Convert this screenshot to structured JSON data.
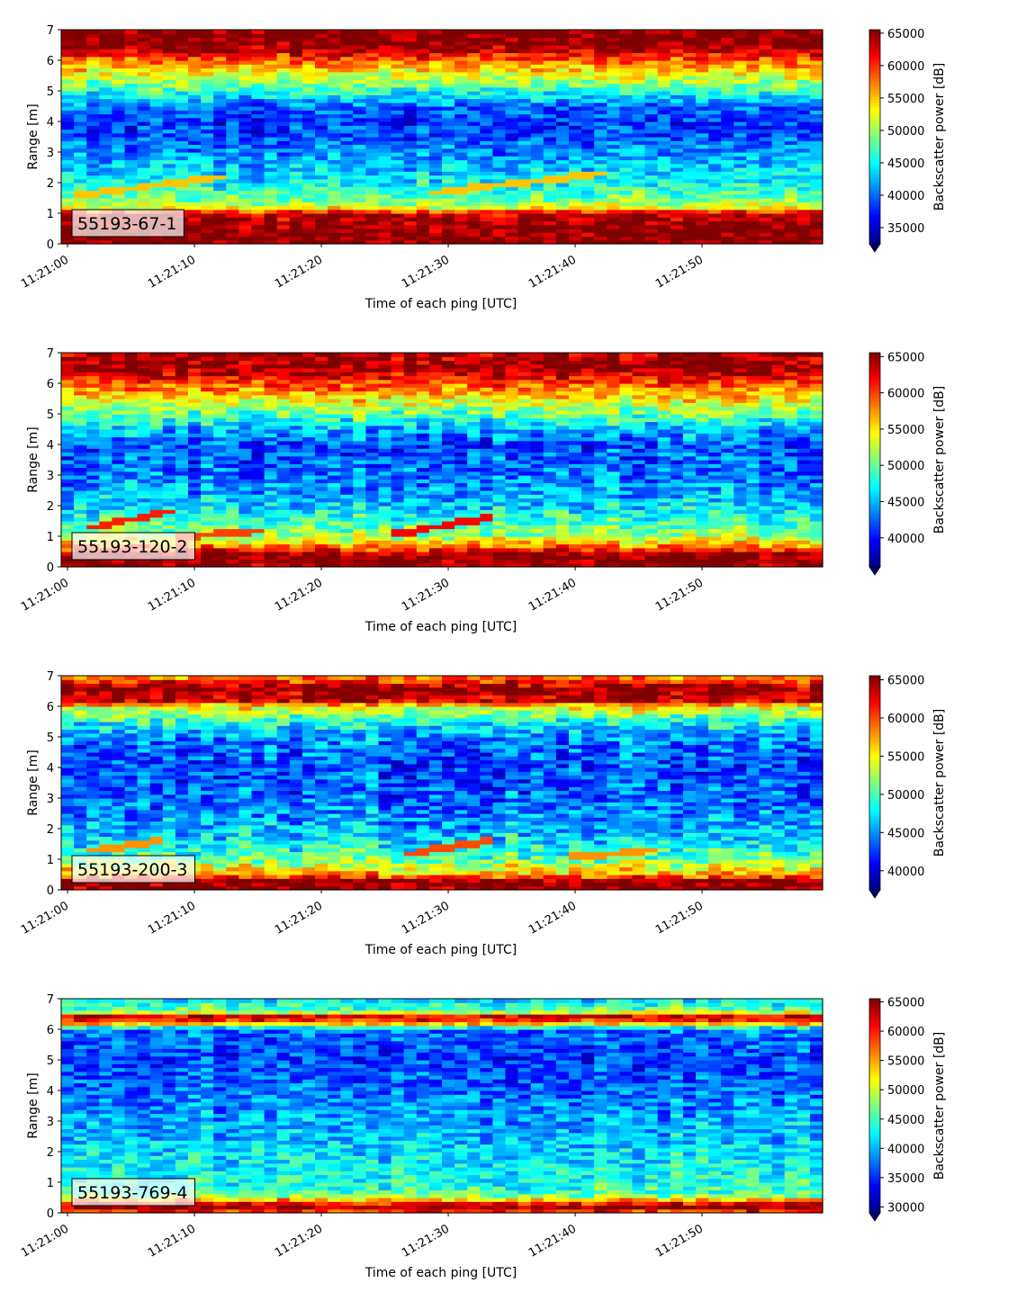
{
  "colormap": "jet",
  "chart_data": [
    {
      "type": "heatmap",
      "panel_label": "55193-67-1",
      "xlabel": "Time of each ping [UTC]",
      "ylabel": "Range [m]",
      "x_ticks": [
        "11:21:00",
        "11:21:10",
        "11:21:20",
        "11:21:30",
        "11:21:40",
        "11:21:50"
      ],
      "y_ticks": [
        "0",
        "1",
        "2",
        "3",
        "4",
        "5",
        "6",
        "7"
      ],
      "xlim": [
        "11:20:59.5",
        "11:21:59.5"
      ],
      "ylim": [
        0,
        7
      ],
      "colorbar": {
        "label": "Backscatter power [dB]",
        "ticks": [
          "35000",
          "40000",
          "45000",
          "50000",
          "55000",
          "60000",
          "65000"
        ],
        "vmin": 32500,
        "vmax": 65535,
        "extend": "min"
      },
      "profile": {
        "range_m": [
          0.2,
          0.5,
          1.0,
          1.2,
          1.5,
          2.0,
          2.5,
          3.5,
          4.0,
          4.5,
          5.0,
          5.5,
          6.0,
          6.3,
          6.5,
          7.0
        ],
        "power": [
          65535,
          65535,
          63000,
          52000,
          48000,
          45000,
          43000,
          39000,
          38000,
          40000,
          46000,
          52000,
          58000,
          63000,
          65535,
          65535
        ]
      },
      "tracks": [
        {
          "t_start": 1,
          "t_end": 12,
          "range_start": 1.6,
          "range_end": 2.2,
          "power": 55000
        },
        {
          "t_start": 29,
          "t_end": 42,
          "range_start": 1.7,
          "range_end": 2.3,
          "power": 55000
        }
      ],
      "noise": 3500
    },
    {
      "type": "heatmap",
      "panel_label": "55193-120-2",
      "xlabel": "Time of each ping [UTC]",
      "ylabel": "Range [m]",
      "x_ticks": [
        "11:21:00",
        "11:21:10",
        "11:21:20",
        "11:21:30",
        "11:21:40",
        "11:21:50"
      ],
      "y_ticks": [
        "0",
        "1",
        "2",
        "3",
        "4",
        "5",
        "6",
        "7"
      ],
      "xlim": [
        "11:20:59.5",
        "11:21:59.5"
      ],
      "ylim": [
        0,
        7
      ],
      "colorbar": {
        "label": "Backscatter power [dB]",
        "ticks": [
          "40000",
          "45000",
          "50000",
          "55000",
          "60000",
          "65000"
        ],
        "vmin": 36000,
        "vmax": 65535,
        "extend": "min"
      },
      "profile": {
        "range_m": [
          0.0,
          0.4,
          0.6,
          1.0,
          1.5,
          2.0,
          3.0,
          4.0,
          4.5,
          5.0,
          5.5,
          6.0,
          6.5,
          7.0
        ],
        "power": [
          65535,
          65535,
          60000,
          52000,
          49000,
          46000,
          43000,
          42000,
          45000,
          50000,
          55000,
          60000,
          65535,
          64000
        ]
      },
      "tracks": [
        {
          "t_start": 2,
          "t_end": 8,
          "range_start": 1.3,
          "range_end": 1.8,
          "power": 61000
        },
        {
          "t_start": 9,
          "t_end": 15,
          "range_start": 1.0,
          "range_end": 1.2,
          "power": 60000
        },
        {
          "t_start": 26,
          "t_end": 33,
          "range_start": 1.1,
          "range_end": 1.6,
          "power": 62000
        }
      ],
      "noise": 3500
    },
    {
      "type": "heatmap",
      "panel_label": "55193-200-3",
      "xlabel": "Time of each ping [UTC]",
      "ylabel": "Range [m]",
      "x_ticks": [
        "11:21:00",
        "11:21:10",
        "11:21:20",
        "11:21:30",
        "11:21:40",
        "11:21:50"
      ],
      "y_ticks": [
        "0",
        "1",
        "2",
        "3",
        "4",
        "5",
        "6",
        "7"
      ],
      "xlim": [
        "11:20:59.5",
        "11:21:59.5"
      ],
      "ylim": [
        0,
        7
      ],
      "colorbar": {
        "label": "Backscatter power [dB]",
        "ticks": [
          "40000",
          "45000",
          "50000",
          "55000",
          "60000",
          "65000"
        ],
        "vmin": 37500,
        "vmax": 65535,
        "extend": "min"
      },
      "profile": {
        "range_m": [
          0.0,
          0.3,
          0.5,
          1.0,
          1.5,
          2.0,
          3.0,
          4.0,
          5.0,
          5.5,
          6.0,
          6.2,
          6.6,
          7.0
        ],
        "power": [
          65535,
          65535,
          58000,
          51000,
          48000,
          46000,
          44000,
          43000,
          45000,
          49000,
          55000,
          64000,
          65535,
          58000
        ]
      },
      "tracks": [
        {
          "t_start": 2,
          "t_end": 7,
          "range_start": 1.3,
          "range_end": 1.6,
          "power": 58000
        },
        {
          "t_start": 27,
          "t_end": 33,
          "range_start": 1.2,
          "range_end": 1.6,
          "power": 60000
        },
        {
          "t_start": 40,
          "t_end": 46,
          "range_start": 1.1,
          "range_end": 1.3,
          "power": 58000
        }
      ],
      "noise": 3500
    },
    {
      "type": "heatmap",
      "panel_label": "55193-769-4",
      "xlabel": "Time of each ping [UTC]",
      "ylabel": "Range [m]",
      "x_ticks": [
        "11:21:00",
        "11:21:10",
        "11:21:20",
        "11:21:30",
        "11:21:40",
        "11:21:50"
      ],
      "y_ticks": [
        "0",
        "1",
        "2",
        "3",
        "4",
        "5",
        "6",
        "7"
      ],
      "xlim": [
        "11:20:59.5",
        "11:21:59.5"
      ],
      "ylim": [
        0,
        7
      ],
      "colorbar": {
        "label": "Backscatter power [dB]",
        "ticks": [
          "30000",
          "35000",
          "40000",
          "45000",
          "50000",
          "55000",
          "60000",
          "65000"
        ],
        "vmin": 29000,
        "vmax": 65535,
        "extend": "min"
      },
      "profile": {
        "range_m": [
          0.0,
          0.2,
          0.35,
          0.6,
          1.0,
          2.0,
          3.0,
          4.0,
          5.0,
          6.0,
          6.2,
          6.4,
          6.6,
          7.0
        ],
        "power": [
          58000,
          65535,
          60000,
          46000,
          44000,
          42000,
          40000,
          38000,
          36000,
          38000,
          55000,
          65000,
          47000,
          42000
        ]
      },
      "tracks": [],
      "noise": 4000
    }
  ]
}
